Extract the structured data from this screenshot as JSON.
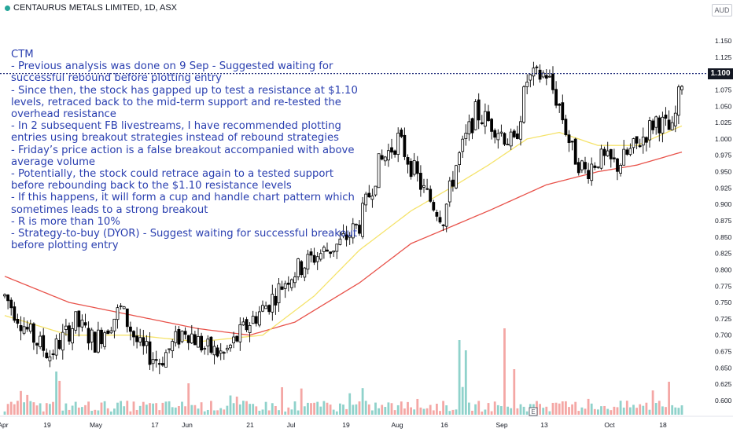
{
  "header": {
    "title": "CENTAURUS METALS LIMITED, 1D, ASX",
    "currency": "AUD"
  },
  "price_label": "1.100",
  "event_marker": "E",
  "notes": [
    "CTM",
    "- Previous analysis was done on 9 Sep - Suggested waiting for",
    "successful rebound before plotting entry",
    "- Since then, the stock has gapped up to test a resistance at $1.10",
    "levels, retraced back to the mid-term support and re-tested the",
    "overhead resistance",
    "- In 2 subsequent FB livestreams, I have recommended plotting",
    "entries using breakout strategies instead of rebound strategies",
    "- Friday’s price action is a false breakout accompanied with above",
    "average volume",
    "- Potentially, the stock could retrace again to a tested support",
    "before rebounding back to the $1.10 resistance levels",
    "- If this happens, it will form a cup and handle chart pattern which",
    "sometimes leads to a strong breakout",
    "- R is more than 10%",
    "- Strategy-to-buy (DYOR) - Suggest waiting for successful breakout",
    "before plotting entry"
  ],
  "colors": {
    "up": "#26a69a",
    "down": "#ef5350",
    "candle": "#000000",
    "ma_fast": "#f5e36b",
    "ma_slow": "#e8524a",
    "note": "#2a3fb0",
    "resistance": "#1e2a78"
  },
  "chart_data": {
    "type": "candlestick",
    "y_axis": {
      "min": 0.6,
      "max": 1.15,
      "ticks": [
        "1.150",
        "1.125",
        "1.100",
        "1.075",
        "1.050",
        "1.025",
        "1.000",
        "0.975",
        "0.950",
        "0.925",
        "0.900",
        "0.875",
        "0.850",
        "0.825",
        "0.800",
        "0.775",
        "0.750",
        "0.725",
        "0.700",
        "0.675",
        "0.650",
        "0.625",
        "0.600"
      ]
    },
    "x_axis": {
      "labels": [
        "Apr",
        "19",
        "May",
        "17",
        "Jun",
        "21",
        "Jul",
        "19",
        "Aug",
        "16",
        "Sep",
        "13",
        "Oct",
        "18"
      ]
    },
    "resistance": 1.1,
    "last_price": 1.1,
    "anchors": [
      [
        0,
        0.76
      ],
      [
        8,
        0.7
      ],
      [
        14,
        0.67
      ],
      [
        22,
        0.72
      ],
      [
        28,
        0.69
      ],
      [
        36,
        0.74
      ],
      [
        42,
        0.68
      ],
      [
        48,
        0.66
      ],
      [
        56,
        0.71
      ],
      [
        62,
        0.68
      ],
      [
        68,
        0.67
      ],
      [
        76,
        0.72
      ],
      [
        82,
        0.75
      ],
      [
        88,
        0.79
      ],
      [
        96,
        0.82
      ],
      [
        104,
        0.84
      ],
      [
        110,
        0.87
      ],
      [
        116,
        0.96
      ],
      [
        122,
        1.0
      ],
      [
        130,
        0.92
      ],
      [
        136,
        0.88
      ],
      [
        140,
        0.96
      ],
      [
        146,
        1.04
      ],
      [
        152,
        1.02
      ],
      [
        158,
        0.99
      ],
      [
        162,
        1.09
      ],
      [
        168,
        1.1
      ],
      [
        172,
        1.05
      ],
      [
        176,
        0.98
      ],
      [
        180,
        0.95
      ],
      [
        184,
        0.97
      ],
      [
        190,
        0.96
      ],
      [
        196,
        0.99
      ],
      [
        202,
        1.03
      ],
      [
        207,
        1.01
      ],
      [
        210,
        1.09
      ]
    ],
    "ma_fast": [
      [
        0,
        0.73
      ],
      [
        20,
        0.7
      ],
      [
        40,
        0.7
      ],
      [
        60,
        0.69
      ],
      [
        80,
        0.7
      ],
      [
        96,
        0.76
      ],
      [
        110,
        0.83
      ],
      [
        126,
        0.89
      ],
      [
        140,
        0.93
      ],
      [
        150,
        0.96
      ],
      [
        162,
        1.0
      ],
      [
        172,
        1.01
      ],
      [
        184,
        0.99
      ],
      [
        196,
        0.99
      ],
      [
        210,
        1.02
      ]
    ],
    "ma_slow": [
      [
        0,
        0.79
      ],
      [
        20,
        0.75
      ],
      [
        40,
        0.73
      ],
      [
        60,
        0.71
      ],
      [
        76,
        0.7
      ],
      [
        90,
        0.72
      ],
      [
        110,
        0.78
      ],
      [
        126,
        0.84
      ],
      [
        150,
        0.89
      ],
      [
        168,
        0.93
      ],
      [
        184,
        0.95
      ],
      [
        196,
        0.96
      ],
      [
        210,
        0.98
      ]
    ],
    "volume_bars": 211
  }
}
